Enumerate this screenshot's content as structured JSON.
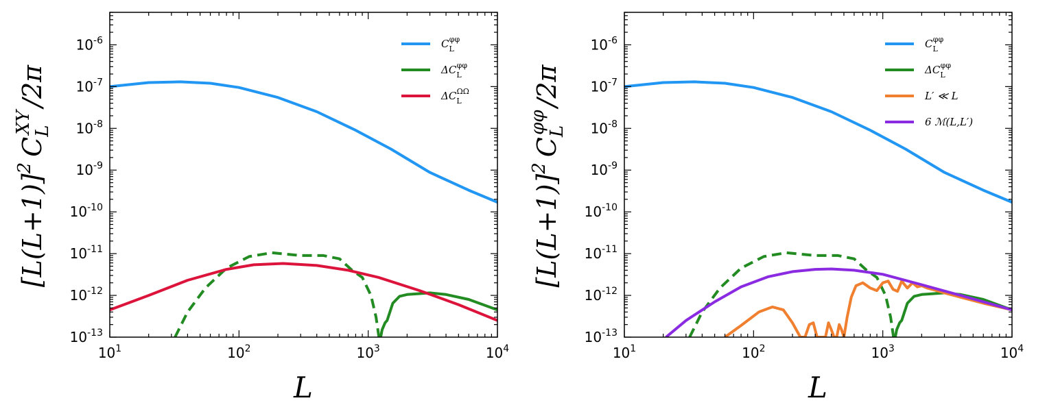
{
  "chart_data": [
    {
      "type": "line",
      "xscale": "log",
      "yscale": "log",
      "xlim": [
        10,
        10000
      ],
      "ylim": [
        1e-13,
        6e-06
      ],
      "xlabel": "L",
      "ylabel": "[L(L+1)]² C_L^{XY} /2π",
      "ylabel_parts": {
        "main": "[L(L+1)]",
        "sup": "2",
        "c": "C",
        "sub": "L",
        "csup": "XY",
        "tail": "/2π"
      },
      "xticks": [
        {
          "base": "10",
          "exp": "1"
        },
        {
          "base": "10",
          "exp": "2"
        },
        {
          "base": "10",
          "exp": "3"
        },
        {
          "base": "10",
          "exp": "4"
        }
      ],
      "yticks": [
        {
          "base": "10",
          "exp": "-13"
        },
        {
          "base": "10",
          "exp": "-12"
        },
        {
          "base": "10",
          "exp": "-11"
        },
        {
          "base": "10",
          "exp": "-10"
        },
        {
          "base": "10",
          "exp": "-9"
        },
        {
          "base": "10",
          "exp": "-8"
        },
        {
          "base": "10",
          "exp": "-7"
        },
        {
          "base": "10",
          "exp": "-6"
        }
      ],
      "legend_position": "top-right",
      "series": [
        {
          "name": "C_L^{φφ}",
          "label_main": "C",
          "label_sub": "L",
          "label_sup": "φφ",
          "color": "#2196f3",
          "dash": "solid",
          "x": [
            10,
            20,
            35,
            60,
            100,
            200,
            400,
            800,
            1500,
            3000,
            6000,
            10000
          ],
          "y": [
            1e-07,
            1.25e-07,
            1.3e-07,
            1.2e-07,
            9.5e-08,
            5.5e-08,
            2.5e-08,
            9e-09,
            3.2e-09,
            8.8e-10,
            3.3e-10,
            1.7e-10
          ]
        },
        {
          "name": "ΔC_L^{φφ} (negative, dashed)",
          "legend": false,
          "color": "#228b22",
          "dash": "dashed",
          "x": [
            32,
            40,
            55,
            80,
            120,
            180,
            300,
            450,
            600,
            750,
            900,
            1050,
            1150,
            1210
          ],
          "y": [
            1e-13,
            4e-13,
            1.5e-12,
            4.5e-12,
            8.5e-12,
            1.05e-11,
            9e-12,
            9e-12,
            7.5e-12,
            4e-12,
            2.7e-12,
            1e-12,
            3e-13,
            1e-13
          ]
        },
        {
          "name": "ΔC_L^{φφ}",
          "label_main": "ΔC",
          "label_sub": "L",
          "label_sup": "φφ",
          "color": "#228b22",
          "dash": "solid",
          "x": [
            1250,
            1280,
            1350,
            1400,
            1550,
            1750,
            2000,
            2500,
            3000,
            4000,
            6000,
            10000
          ],
          "y": [
            1e-13,
            1.5e-13,
            2.2e-13,
            2.5e-13,
            6.5e-13,
            9.5e-13,
            1.05e-12,
            1.1e-12,
            1.15e-12,
            1.05e-12,
            8e-13,
            4.5e-13
          ]
        },
        {
          "name": "ΔC_L^{ΩΩ}",
          "label_main": "ΔC",
          "label_sub": "L",
          "label_sup": "ΩΩ",
          "color": "#dc143c",
          "dash": "solid",
          "x": [
            10,
            20,
            40,
            80,
            130,
            220,
            400,
            700,
            1200,
            2500,
            5000,
            10000
          ],
          "y": [
            4.5e-13,
            1e-12,
            2.3e-12,
            4.2e-12,
            5.4e-12,
            5.8e-12,
            5.2e-12,
            4e-12,
            2.7e-12,
            1.3e-12,
            6e-13,
            2.5e-13
          ]
        }
      ]
    },
    {
      "type": "line",
      "xscale": "log",
      "yscale": "log",
      "xlim": [
        10,
        10000
      ],
      "ylim": [
        1e-13,
        6e-06
      ],
      "xlabel": "L",
      "ylabel": "[L(L+1)]² C_L^{φφ} /2π",
      "ylabel_parts": {
        "main": "[L(L+1)]",
        "sup": "2",
        "c": "C",
        "sub": "L",
        "csup": "φφ",
        "tail": "/2π"
      },
      "xticks": [
        {
          "base": "10",
          "exp": "1"
        },
        {
          "base": "10",
          "exp": "2"
        },
        {
          "base": "10",
          "exp": "3"
        },
        {
          "base": "10",
          "exp": "4"
        }
      ],
      "yticks": [
        {
          "base": "10",
          "exp": "-13"
        },
        {
          "base": "10",
          "exp": "-12"
        },
        {
          "base": "10",
          "exp": "-11"
        },
        {
          "base": "10",
          "exp": "-10"
        },
        {
          "base": "10",
          "exp": "-9"
        },
        {
          "base": "10",
          "exp": "-8"
        },
        {
          "base": "10",
          "exp": "-7"
        },
        {
          "base": "10",
          "exp": "-6"
        }
      ],
      "legend_position": "top-right",
      "series": [
        {
          "name": "C_L^{φφ}",
          "label_main": "C",
          "label_sub": "L",
          "label_sup": "φφ",
          "color": "#2196f3",
          "dash": "solid",
          "x": [
            10,
            20,
            35,
            60,
            100,
            200,
            400,
            800,
            1500,
            3000,
            6000,
            10000
          ],
          "y": [
            1e-07,
            1.25e-07,
            1.3e-07,
            1.2e-07,
            9.5e-08,
            5.5e-08,
            2.5e-08,
            9e-09,
            3.2e-09,
            8.8e-10,
            3.3e-10,
            1.7e-10
          ]
        },
        {
          "name": "ΔC_L^{φφ} (negative, dashed)",
          "legend": false,
          "color": "#228b22",
          "dash": "dashed",
          "x": [
            32,
            40,
            55,
            80,
            120,
            180,
            300,
            450,
            600,
            750,
            900,
            1050,
            1150,
            1210
          ],
          "y": [
            1e-13,
            4e-13,
            1.5e-12,
            4.5e-12,
            8.5e-12,
            1.05e-11,
            9e-12,
            9e-12,
            7.5e-12,
            4e-12,
            2.7e-12,
            1e-12,
            3e-13,
            1e-13
          ]
        },
        {
          "name": "ΔC_L^{φφ}",
          "label_main": "ΔC",
          "label_sub": "L",
          "label_sup": "φφ",
          "color": "#228b22",
          "dash": "solid",
          "x": [
            1250,
            1280,
            1350,
            1400,
            1550,
            1750,
            2000,
            2500,
            3000,
            4000,
            6000,
            10000
          ],
          "y": [
            1e-13,
            1.5e-13,
            2.2e-13,
            2.5e-13,
            6.5e-13,
            9.5e-13,
            1.05e-12,
            1.1e-12,
            1.15e-12,
            1.05e-12,
            8e-13,
            4.5e-13
          ]
        },
        {
          "name": "L' ≪ L",
          "label_main": "L′ ≪ L",
          "label_sub": "",
          "label_sup": "",
          "color": "#f08030",
          "dash": "solid",
          "x": [
            60,
            80,
            110,
            140,
            170,
            200,
            230,
            250,
            270,
            290,
            310,
            330,
            360,
            380,
            400,
            420,
            440,
            460,
            480,
            500,
            530,
            570,
            620,
            700,
            800,
            900,
            1000,
            1100,
            1200,
            1300,
            1400,
            1550,
            1700,
            1850,
            2000,
            2200,
            2500,
            3000,
            4000,
            6000,
            10000
          ],
          "y": [
            1e-13,
            1.9e-13,
            4e-13,
            5.3e-13,
            4.5e-13,
            2.2e-13,
            1e-13,
            1e-13,
            2e-13,
            2.2e-13,
            1e-13,
            1e-13,
            1e-13,
            2.2e-13,
            1.5e-13,
            1e-13,
            1e-13,
            2e-13,
            1.5e-13,
            1e-13,
            3e-13,
            9e-13,
            1.7e-12,
            2e-12,
            1.5e-12,
            1.3e-12,
            2e-12,
            2.2e-12,
            1.4e-12,
            1.25e-12,
            2.2e-12,
            1.5e-12,
            2e-12,
            1.6e-12,
            1.7e-12,
            1.5e-12,
            1.35e-12,
            1.15e-12,
            9e-13,
            6.5e-13,
            4.5e-13
          ]
        },
        {
          "name": "6 M(L,L')",
          "label_main": "6 ℳ(L,L′)",
          "label_sub": "",
          "label_sup": "",
          "color": "#8a2be2",
          "dash": "solid",
          "x": [
            21,
            30,
            50,
            80,
            130,
            200,
            300,
            400,
            600,
            1000,
            2000,
            4000,
            10000
          ],
          "y": [
            1e-13,
            2.5e-13,
            7e-13,
            1.6e-12,
            2.8e-12,
            3.7e-12,
            4.2e-12,
            4.3e-12,
            4e-12,
            3.2e-12,
            1.8e-12,
            1e-12,
            4.5e-13
          ]
        }
      ]
    }
  ]
}
